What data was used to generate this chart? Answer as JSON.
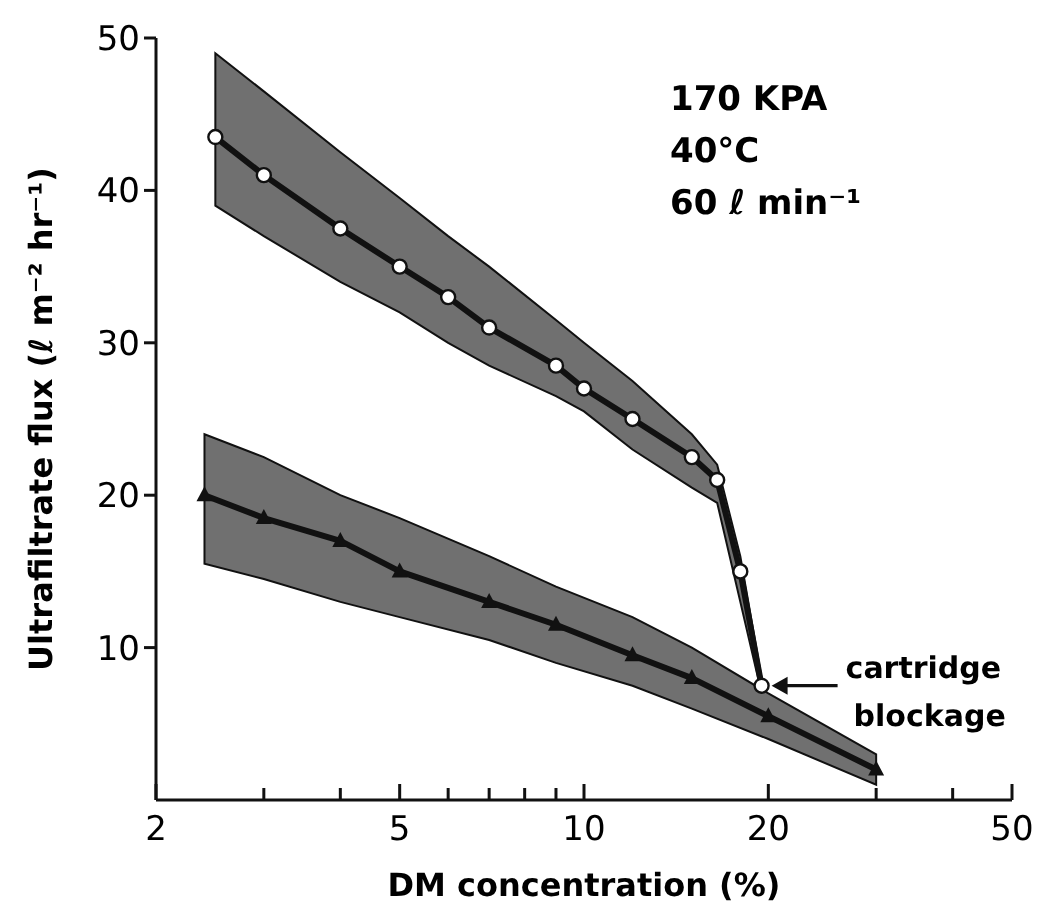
{
  "chart_data": {
    "type": "line",
    "xlabel": "DM concentration (%)",
    "ylabel": "Ultrafiltrate flux (ℓ m⁻² hr⁻¹)",
    "log": "x",
    "xlim": [
      2,
      50
    ],
    "ylim": [
      0,
      50
    ],
    "xticks": [
      2,
      {
        "value": 3,
        "label": null
      },
      {
        "value": 4,
        "label": null
      },
      5,
      {
        "value": 6,
        "label": null
      },
      {
        "value": 7,
        "label": null
      },
      {
        "value": 8,
        "label": null
      },
      {
        "value": 9,
        "label": null
      },
      10,
      20,
      {
        "value": 30,
        "label": null
      },
      {
        "value": 40,
        "label": null
      },
      50
    ],
    "yticks": [
      10,
      20,
      30,
      40,
      50
    ],
    "grid": false,
    "line_style": "solid",
    "series": [
      {
        "color": "#111111",
        "marker": "triangle",
        "x": [
          2.4,
          3,
          4,
          5,
          7,
          9,
          12,
          15,
          20,
          30
        ],
        "values": [
          20,
          18.5,
          17,
          15,
          13,
          11.5,
          9.5,
          8,
          5.5,
          2
        ],
        "upper": [
          24,
          22.5,
          20,
          18.5,
          16,
          14,
          12,
          10,
          7,
          3
        ],
        "lower": [
          15.5,
          14.5,
          13,
          12,
          10.5,
          9,
          7.5,
          6,
          4,
          1
        ]
      },
      {
        "color": "#111111",
        "marker": "circle",
        "x": [
          2.5,
          3,
          4,
          5,
          6,
          7,
          9,
          10,
          12,
          15,
          16.5,
          18,
          19.5
        ],
        "values": [
          43.5,
          41,
          37.5,
          35,
          33,
          31,
          28.5,
          27,
          25,
          22.5,
          21,
          15,
          7.5
        ],
        "upper": [
          49,
          46.5,
          42.5,
          39.5,
          37,
          35,
          31.5,
          30,
          27.5,
          24,
          22,
          16,
          8
        ],
        "lower": [
          39,
          37,
          34,
          32,
          30,
          28.5,
          26.5,
          25.5,
          23,
          20.5,
          19.5,
          13,
          7
        ]
      }
    ],
    "annotations": [
      "170 KPA",
      "40°C",
      "60 ℓ min⁻¹",
      {
        "text": "cartridge blockage",
        "x": 19.5,
        "y": 7.5
      }
    ]
  }
}
